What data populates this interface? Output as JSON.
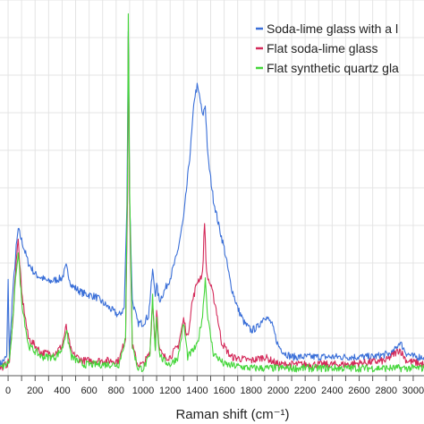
{
  "chart_data": {
    "type": "line",
    "title": "",
    "xlabel": "Raman shift (cm⁻¹)",
    "ylabel": "",
    "xlim": [
      -60,
      3080
    ],
    "ylim": [
      0,
      1.0
    ],
    "grid": true,
    "legend_position": "top-right",
    "x_ticks": [
      0,
      100,
      200,
      300,
      400,
      500,
      600,
      700,
      800,
      900,
      1000,
      1100,
      1200,
      1300,
      1400,
      1500,
      1600,
      1700,
      1800,
      1900,
      2000,
      2100,
      2200,
      2300,
      2400,
      2500,
      2600,
      2700,
      2800,
      2900,
      3000
    ],
    "x_tick_labels": [
      "0",
      "200",
      "400",
      "600",
      "800",
      "1000",
      "1200",
      "1400",
      "1600",
      "1800",
      "2000",
      "2200",
      "2400",
      "2600",
      "2800",
      "3000"
    ],
    "series": [
      {
        "name": "Soda-lime glass with a l",
        "color": "#3a6fd8",
        "points": [
          [
            -60,
            0.03
          ],
          [
            -10,
            0.05
          ],
          [
            0,
            0.25
          ],
          [
            10,
            0.05
          ],
          [
            30,
            0.2
          ],
          [
            60,
            0.34
          ],
          [
            75,
            0.39
          ],
          [
            100,
            0.36
          ],
          [
            150,
            0.3
          ],
          [
            200,
            0.27
          ],
          [
            300,
            0.25
          ],
          [
            400,
            0.26
          ],
          [
            430,
            0.29
          ],
          [
            470,
            0.24
          ],
          [
            550,
            0.22
          ],
          [
            650,
            0.21
          ],
          [
            750,
            0.18
          ],
          [
            820,
            0.16
          ],
          [
            860,
            0.18
          ],
          [
            880,
            0.45
          ],
          [
            890,
            0.92
          ],
          [
            900,
            0.47
          ],
          [
            920,
            0.2
          ],
          [
            960,
            0.14
          ],
          [
            1000,
            0.14
          ],
          [
            1040,
            0.16
          ],
          [
            1070,
            0.28
          ],
          [
            1090,
            0.22
          ],
          [
            1100,
            0.24
          ],
          [
            1120,
            0.2
          ],
          [
            1150,
            0.22
          ],
          [
            1200,
            0.26
          ],
          [
            1250,
            0.32
          ],
          [
            1300,
            0.42
          ],
          [
            1350,
            0.6
          ],
          [
            1380,
            0.74
          ],
          [
            1400,
            0.77
          ],
          [
            1420,
            0.74
          ],
          [
            1440,
            0.69
          ],
          [
            1460,
            0.72
          ],
          [
            1480,
            0.58
          ],
          [
            1520,
            0.47
          ],
          [
            1560,
            0.4
          ],
          [
            1600,
            0.34
          ],
          [
            1650,
            0.24
          ],
          [
            1700,
            0.18
          ],
          [
            1750,
            0.14
          ],
          [
            1800,
            0.12
          ],
          [
            1850,
            0.13
          ],
          [
            1900,
            0.16
          ],
          [
            1950,
            0.14
          ],
          [
            2000,
            0.08
          ],
          [
            2050,
            0.06
          ],
          [
            2100,
            0.05
          ],
          [
            2300,
            0.05
          ],
          [
            2500,
            0.05
          ],
          [
            2700,
            0.05
          ],
          [
            2850,
            0.06
          ],
          [
            2900,
            0.09
          ],
          [
            2950,
            0.06
          ],
          [
            3000,
            0.05
          ],
          [
            3080,
            0.05
          ]
        ]
      },
      {
        "name": "Flat soda-lime glass",
        "color": "#d42a5a",
        "points": [
          [
            -60,
            0.02
          ],
          [
            -10,
            0.03
          ],
          [
            10,
            0.04
          ],
          [
            30,
            0.12
          ],
          [
            60,
            0.31
          ],
          [
            75,
            0.36
          ],
          [
            100,
            0.22
          ],
          [
            150,
            0.1
          ],
          [
            250,
            0.06
          ],
          [
            350,
            0.06
          ],
          [
            400,
            0.08
          ],
          [
            430,
            0.13
          ],
          [
            470,
            0.06
          ],
          [
            550,
            0.04
          ],
          [
            700,
            0.04
          ],
          [
            820,
            0.04
          ],
          [
            870,
            0.1
          ],
          [
            885,
            0.5
          ],
          [
            890,
            0.91
          ],
          [
            900,
            0.45
          ],
          [
            920,
            0.08
          ],
          [
            960,
            0.03
          ],
          [
            1000,
            0.03
          ],
          [
            1050,
            0.06
          ],
          [
            1070,
            0.2
          ],
          [
            1090,
            0.08
          ],
          [
            1100,
            0.18
          ],
          [
            1120,
            0.07
          ],
          [
            1150,
            0.05
          ],
          [
            1200,
            0.05
          ],
          [
            1260,
            0.08
          ],
          [
            1300,
            0.15
          ],
          [
            1330,
            0.1
          ],
          [
            1360,
            0.19
          ],
          [
            1400,
            0.25
          ],
          [
            1440,
            0.27
          ],
          [
            1455,
            0.41
          ],
          [
            1470,
            0.27
          ],
          [
            1500,
            0.24
          ],
          [
            1540,
            0.18
          ],
          [
            1580,
            0.09
          ],
          [
            1650,
            0.05
          ],
          [
            1800,
            0.04
          ],
          [
            1900,
            0.05
          ],
          [
            2000,
            0.03
          ],
          [
            2200,
            0.03
          ],
          [
            2500,
            0.03
          ],
          [
            2800,
            0.04
          ],
          [
            2900,
            0.07
          ],
          [
            2950,
            0.04
          ],
          [
            3080,
            0.03
          ]
        ]
      },
      {
        "name": "Flat synthetic quartz gla",
        "color": "#44d63a",
        "points": [
          [
            -60,
            0.02
          ],
          [
            -10,
            0.03
          ],
          [
            10,
            0.04
          ],
          [
            30,
            0.12
          ],
          [
            60,
            0.28
          ],
          [
            75,
            0.33
          ],
          [
            100,
            0.2
          ],
          [
            150,
            0.08
          ],
          [
            250,
            0.05
          ],
          [
            350,
            0.05
          ],
          [
            400,
            0.07
          ],
          [
            430,
            0.12
          ],
          [
            470,
            0.05
          ],
          [
            550,
            0.03
          ],
          [
            700,
            0.03
          ],
          [
            820,
            0.03
          ],
          [
            870,
            0.1
          ],
          [
            885,
            0.55
          ],
          [
            890,
            0.97
          ],
          [
            900,
            0.5
          ],
          [
            920,
            0.08
          ],
          [
            960,
            0.02
          ],
          [
            1000,
            0.02
          ],
          [
            1050,
            0.05
          ],
          [
            1070,
            0.21
          ],
          [
            1090,
            0.07
          ],
          [
            1100,
            0.16
          ],
          [
            1120,
            0.06
          ],
          [
            1150,
            0.04
          ],
          [
            1200,
            0.03
          ],
          [
            1260,
            0.05
          ],
          [
            1300,
            0.14
          ],
          [
            1330,
            0.05
          ],
          [
            1400,
            0.08
          ],
          [
            1440,
            0.16
          ],
          [
            1460,
            0.26
          ],
          [
            1480,
            0.15
          ],
          [
            1520,
            0.06
          ],
          [
            1600,
            0.03
          ],
          [
            1800,
            0.02
          ],
          [
            2000,
            0.02
          ],
          [
            2500,
            0.02
          ],
          [
            3080,
            0.02
          ]
        ]
      }
    ]
  }
}
